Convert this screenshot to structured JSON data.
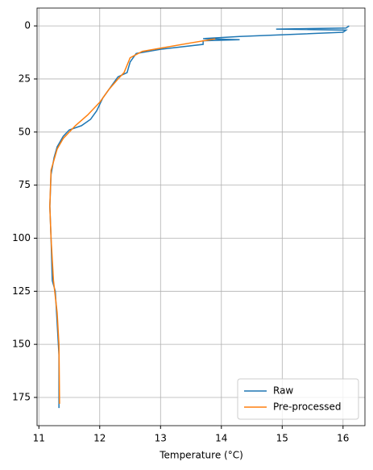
{
  "chart_data": {
    "type": "line",
    "x_label": "Temperature (°C)",
    "xlim": [
      10.97,
      16.36
    ],
    "xticks": [
      11,
      12,
      13,
      14,
      15,
      16
    ],
    "ylim": [
      188.3,
      -8.4
    ],
    "yticks": [
      0,
      25,
      50,
      75,
      100,
      125,
      150,
      175
    ],
    "grid": true,
    "legend": "lower right",
    "series": [
      {
        "name": "Raw",
        "color": "#1f77b4",
        "x": [
          16.1,
          16.05,
          14.9,
          16.05,
          16.0,
          14.3,
          13.7,
          14.3,
          13.7,
          13.7,
          13.0,
          12.6,
          12.5,
          12.45,
          12.3,
          12.2,
          12.05,
          11.95,
          11.85,
          11.7,
          11.5,
          11.4,
          11.3,
          11.25,
          11.2,
          11.18,
          11.2,
          11.22,
          11.27,
          11.3,
          11.33,
          11.33
        ],
        "values": [
          0,
          1,
          1.5,
          2,
          3,
          5,
          6,
          6.5,
          7,
          8.7,
          11,
          13,
          17,
          22,
          24,
          28,
          34,
          40,
          44,
          47,
          49,
          52,
          57,
          62,
          70,
          85,
          100,
          120,
          125,
          140,
          155,
          180
        ]
      },
      {
        "name": "Pre-processed",
        "color": "#ff7f0e",
        "x": [
          13.9,
          13.5,
          13.0,
          12.7,
          12.5,
          12.4,
          12.3,
          12.15,
          12.0,
          11.8,
          11.6,
          11.4,
          11.3,
          11.2,
          11.18,
          11.2,
          11.24,
          11.3,
          11.33,
          11.34
        ],
        "values": [
          6.1,
          8,
          10.5,
          12,
          15,
          22,
          25,
          30,
          36,
          42,
          47,
          53,
          58,
          68,
          85,
          100,
          120,
          135,
          150,
          178
        ]
      }
    ]
  }
}
